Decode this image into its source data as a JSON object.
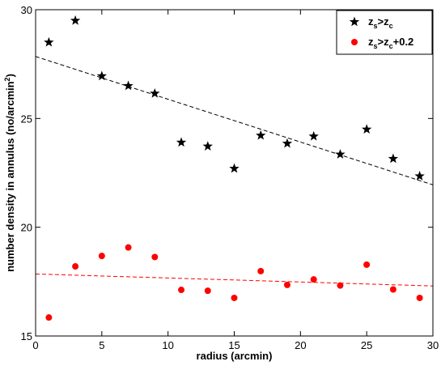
{
  "chart_data": {
    "type": "scatter",
    "title": "",
    "xlabel": "radius (arcmin)",
    "ylabel_parts": {
      "main": "number density in annulus (no/arcmin",
      "sup": "2",
      "close": ")"
    },
    "xlim": [
      0,
      30
    ],
    "ylim": [
      15,
      30
    ],
    "x_ticks": [
      0,
      5,
      10,
      15,
      20,
      25,
      30
    ],
    "y_ticks": [
      15,
      20,
      25,
      30
    ],
    "grid": false,
    "legend_position": "top-right",
    "legend": [
      {
        "marker": "star",
        "color": "#000000",
        "label_parts": [
          {
            "t": "z",
            "s": "base"
          },
          {
            "t": "s",
            "s": "sub"
          },
          {
            "t": ">z",
            "s": "base"
          },
          {
            "t": "c",
            "s": "sub"
          }
        ]
      },
      {
        "marker": "circle",
        "color": "#ff0000",
        "label_parts": [
          {
            "t": "z",
            "s": "base"
          },
          {
            "t": "s",
            "s": "sub"
          },
          {
            "t": ">z",
            "s": "base"
          },
          {
            "t": "c",
            "s": "sub"
          },
          {
            "t": "+0.2",
            "s": "base"
          }
        ]
      }
    ],
    "series": [
      {
        "marker": "star",
        "color": "#000000",
        "x": [
          1,
          3,
          5,
          7,
          9,
          11,
          13,
          15,
          17,
          19,
          21,
          23,
          25,
          27,
          29
        ],
        "y": [
          28.5,
          29.5,
          26.95,
          26.5,
          26.15,
          23.9,
          23.72,
          22.7,
          24.22,
          23.85,
          24.18,
          23.35,
          24.5,
          23.15,
          22.35
        ],
        "fit": {
          "x": [
            0,
            30
          ],
          "y": [
            27.85,
            21.95
          ],
          "style": "dashed"
        }
      },
      {
        "marker": "circle",
        "color": "#ff0000",
        "x": [
          1,
          3,
          5,
          7,
          9,
          11,
          13,
          15,
          17,
          19,
          21,
          23,
          25,
          27,
          29
        ],
        "y": [
          15.85,
          18.2,
          18.68,
          19.07,
          18.63,
          17.12,
          17.08,
          16.75,
          17.98,
          17.35,
          17.6,
          17.32,
          18.28,
          17.14,
          16.75
        ],
        "fit": {
          "x": [
            0,
            30
          ],
          "y": [
            17.85,
            17.3
          ],
          "style": "dashed"
        }
      }
    ]
  }
}
